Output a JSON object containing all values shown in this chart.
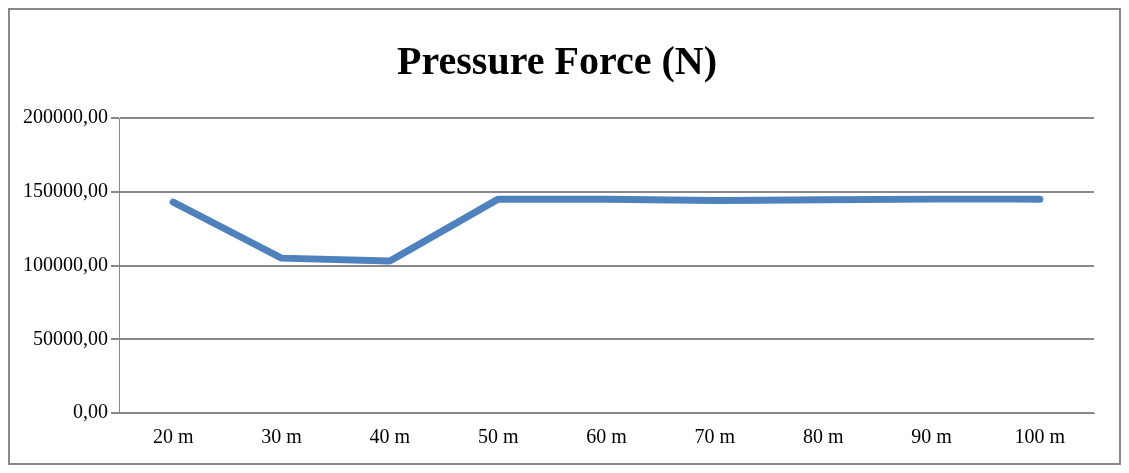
{
  "chart_data": {
    "type": "line",
    "title": "Pressure Force (N)",
    "categories": [
      "20 m",
      "30 m",
      "40 m",
      "50 m",
      "60 m",
      "70 m",
      "80 m",
      "90 m",
      "100 m"
    ],
    "series": [
      {
        "color": "#4f81bd",
        "values": [
          143000,
          105000,
          103000,
          145000,
          145000,
          144000,
          144500,
          145000,
          145000
        ]
      }
    ],
    "ylim": [
      0,
      200000
    ],
    "yticks": [
      {
        "value": 0,
        "label": "0,00"
      },
      {
        "value": 50000,
        "label": "50000,00"
      },
      {
        "value": 100000,
        "label": "100000,00"
      },
      {
        "value": 150000,
        "label": "150000,00"
      },
      {
        "value": 200000,
        "label": "200000,00"
      }
    ],
    "grid": "y",
    "legend": false,
    "marker": "none",
    "line_style": "solid"
  }
}
